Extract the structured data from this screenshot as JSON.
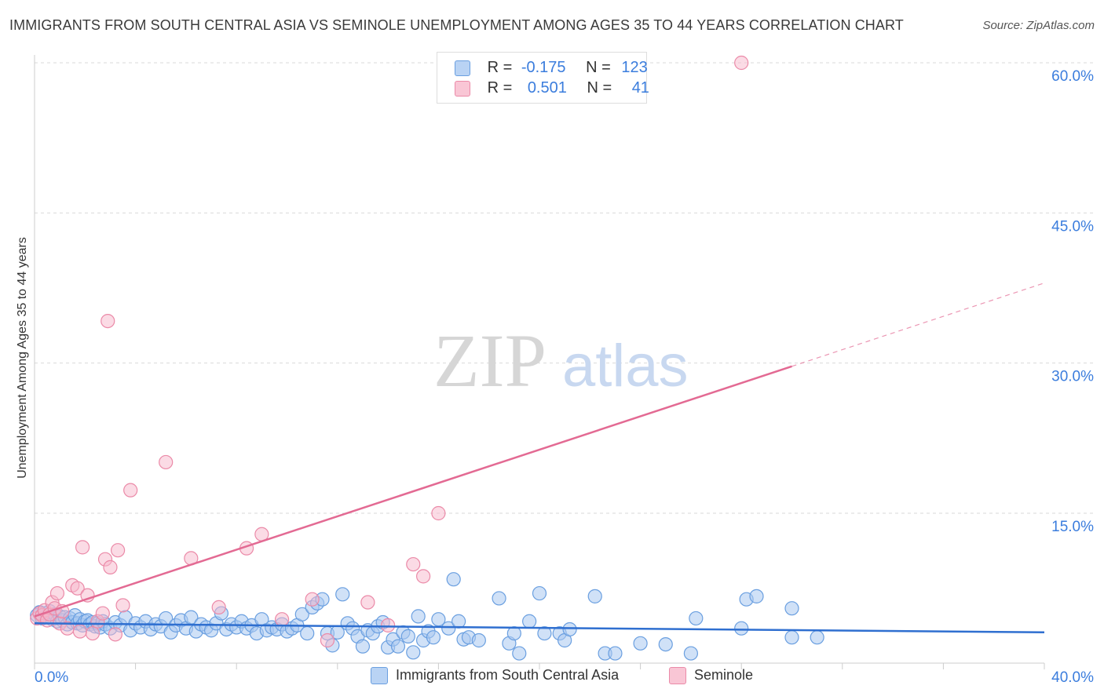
{
  "header": {
    "title": "IMMIGRANTS FROM SOUTH CENTRAL ASIA VS SEMINOLE UNEMPLOYMENT AMONG AGES 35 TO 44 YEARS CORRELATION CHART",
    "source": "Source: ZipAtlas.com"
  },
  "watermark": {
    "zip": "ZIP",
    "atlas": "atlas"
  },
  "legend": {
    "series1": {
      "r_label": "R =",
      "r_value": "-0.175",
      "n_label": "N =",
      "n_value": "123"
    },
    "series2": {
      "r_label": "R =",
      "r_value": "0.501",
      "n_label": "N =",
      "n_value": "41"
    }
  },
  "colors": {
    "blue_fill": "#a9c8f0",
    "blue_stroke": "#6a9fe0",
    "blue_line": "#2f6fd0",
    "pink_fill": "#f7b8cb",
    "pink_stroke": "#eb8aa8",
    "pink_line": "#e36a93",
    "grid": "#d9d9d9",
    "axis_text": "#3b7ddd"
  },
  "chart_data": {
    "type": "scatter",
    "title": "IMMIGRANTS FROM SOUTH CENTRAL ASIA VS SEMINOLE UNEMPLOYMENT AMONG AGES 35 TO 44 YEARS CORRELATION CHART",
    "xlabel": "",
    "ylabel": "Unemployment Among Ages 35 to 44 years",
    "xlim": [
      0,
      40
    ],
    "ylim": [
      0,
      62
    ],
    "x_tick_labels": [
      "0.0%",
      "40.0%"
    ],
    "y_ticks": [
      15,
      30,
      45,
      60
    ],
    "y_tick_labels": [
      "15.0%",
      "30.0%",
      "45.0%",
      "60.0%"
    ],
    "series": [
      {
        "name": "Immigrants from South Central Asia",
        "r": -0.175,
        "n": 123,
        "trend": {
          "x0": 0,
          "y0": 4.0,
          "x1": 40,
          "y1": 3.1
        },
        "points": [
          [
            0.1,
            4.8
          ],
          [
            0.2,
            5.1
          ],
          [
            0.3,
            4.5
          ],
          [
            0.4,
            5.0
          ],
          [
            0.5,
            4.6
          ],
          [
            0.6,
            5.2
          ],
          [
            0.7,
            4.4
          ],
          [
            0.8,
            4.9
          ],
          [
            0.9,
            4.2
          ],
          [
            1.0,
            4.7
          ],
          [
            1.1,
            4.3
          ],
          [
            1.2,
            4.6
          ],
          [
            1.3,
            3.9
          ],
          [
            1.4,
            4.5
          ],
          [
            1.5,
            4.1
          ],
          [
            1.6,
            4.8
          ],
          [
            1.7,
            4.0
          ],
          [
            1.8,
            4.4
          ],
          [
            1.9,
            3.8
          ],
          [
            2.0,
            4.2
          ],
          [
            2.1,
            4.3
          ],
          [
            2.2,
            3.9
          ],
          [
            2.3,
            4.1
          ],
          [
            2.4,
            3.7
          ],
          [
            2.5,
            4.0
          ],
          [
            2.6,
            3.6
          ],
          [
            2.7,
            4.2
          ],
          [
            2.8,
            3.9
          ],
          [
            3.0,
            3.5
          ],
          [
            3.2,
            4.1
          ],
          [
            3.4,
            3.8
          ],
          [
            3.6,
            4.6
          ],
          [
            3.8,
            3.3
          ],
          [
            4.0,
            4.0
          ],
          [
            4.2,
            3.6
          ],
          [
            4.4,
            4.2
          ],
          [
            4.6,
            3.4
          ],
          [
            4.8,
            3.9
          ],
          [
            5.0,
            3.7
          ],
          [
            5.2,
            4.5
          ],
          [
            5.4,
            3.1
          ],
          [
            5.6,
            3.8
          ],
          [
            5.8,
            4.3
          ],
          [
            6.0,
            3.5
          ],
          [
            6.2,
            4.6
          ],
          [
            6.4,
            3.2
          ],
          [
            6.6,
            3.9
          ],
          [
            6.8,
            3.6
          ],
          [
            7.0,
            3.3
          ],
          [
            7.2,
            4.0
          ],
          [
            7.4,
            5.0
          ],
          [
            7.6,
            3.4
          ],
          [
            7.8,
            3.9
          ],
          [
            8.0,
            3.6
          ],
          [
            8.2,
            4.2
          ],
          [
            8.4,
            3.5
          ],
          [
            8.6,
            3.8
          ],
          [
            8.8,
            3.0
          ],
          [
            9.0,
            4.4
          ],
          [
            9.2,
            3.3
          ],
          [
            9.4,
            3.6
          ],
          [
            9.6,
            3.4
          ],
          [
            9.8,
            3.9
          ],
          [
            10.0,
            3.2
          ],
          [
            10.2,
            3.5
          ],
          [
            10.4,
            3.8
          ],
          [
            10.6,
            4.9
          ],
          [
            10.8,
            3.0
          ],
          [
            11.0,
            5.6
          ],
          [
            11.2,
            6.0
          ],
          [
            11.4,
            6.4
          ],
          [
            11.6,
            3.0
          ],
          [
            11.8,
            1.8
          ],
          [
            12.0,
            3.1
          ],
          [
            12.2,
            6.9
          ],
          [
            12.4,
            4.0
          ],
          [
            12.6,
            3.5
          ],
          [
            12.8,
            2.7
          ],
          [
            13.0,
            1.7
          ],
          [
            13.2,
            3.3
          ],
          [
            13.4,
            3.0
          ],
          [
            13.6,
            3.7
          ],
          [
            13.8,
            4.1
          ],
          [
            14.0,
            1.6
          ],
          [
            14.2,
            2.4
          ],
          [
            14.4,
            1.7
          ],
          [
            14.6,
            3.1
          ],
          [
            14.8,
            2.7
          ],
          [
            15.0,
            1.1
          ],
          [
            15.2,
            4.7
          ],
          [
            15.4,
            2.3
          ],
          [
            15.6,
            3.2
          ],
          [
            15.8,
            2.6
          ],
          [
            16.0,
            4.4
          ],
          [
            16.4,
            3.5
          ],
          [
            16.6,
            8.4
          ],
          [
            16.8,
            4.2
          ],
          [
            17.0,
            2.4
          ],
          [
            17.2,
            2.6
          ],
          [
            17.6,
            2.3
          ],
          [
            18.4,
            6.5
          ],
          [
            18.8,
            2.0
          ],
          [
            19.0,
            3.0
          ],
          [
            19.2,
            1.0
          ],
          [
            19.6,
            4.2
          ],
          [
            20.0,
            7.0
          ],
          [
            20.2,
            3.0
          ],
          [
            20.8,
            3.0
          ],
          [
            21.0,
            2.3
          ],
          [
            21.2,
            3.4
          ],
          [
            22.2,
            6.7
          ],
          [
            22.6,
            1.0
          ],
          [
            23.0,
            1.0
          ],
          [
            24.0,
            2.0
          ],
          [
            25.0,
            1.9
          ],
          [
            26.0,
            1.0
          ],
          [
            26.2,
            4.5
          ],
          [
            28.0,
            3.5
          ],
          [
            28.2,
            6.4
          ],
          [
            28.6,
            6.7
          ],
          [
            30.0,
            5.5
          ],
          [
            30.0,
            2.6
          ],
          [
            31.0,
            2.6
          ]
        ]
      },
      {
        "name": "Seminole",
        "r": 0.501,
        "n": 41,
        "trend": {
          "x0": 0,
          "y0": 4.7,
          "x1": 40,
          "y1": 38.0,
          "solid_to_x": 30.0
        },
        "points": [
          [
            0.1,
            4.5
          ],
          [
            0.2,
            5.0
          ],
          [
            0.3,
            4.8
          ],
          [
            0.4,
            5.3
          ],
          [
            0.5,
            4.3
          ],
          [
            0.6,
            4.9
          ],
          [
            0.7,
            6.1
          ],
          [
            0.8,
            5.5
          ],
          [
            0.9,
            7.0
          ],
          [
            1.0,
            4.0
          ],
          [
            1.1,
            5.2
          ],
          [
            1.3,
            3.5
          ],
          [
            1.5,
            7.8
          ],
          [
            1.7,
            7.5
          ],
          [
            1.8,
            3.2
          ],
          [
            1.9,
            11.6
          ],
          [
            2.1,
            6.8
          ],
          [
            2.3,
            3.0
          ],
          [
            2.5,
            4.2
          ],
          [
            2.7,
            5.0
          ],
          [
            2.8,
            10.4
          ],
          [
            2.9,
            34.2
          ],
          [
            3.0,
            9.6
          ],
          [
            3.2,
            2.9
          ],
          [
            3.3,
            11.3
          ],
          [
            3.5,
            5.8
          ],
          [
            3.8,
            17.3
          ],
          [
            5.2,
            20.1
          ],
          [
            6.2,
            10.5
          ],
          [
            7.3,
            5.6
          ],
          [
            8.4,
            11.5
          ],
          [
            9.0,
            12.9
          ],
          [
            9.8,
            4.4
          ],
          [
            11.0,
            6.4
          ],
          [
            11.6,
            2.3
          ],
          [
            13.2,
            6.1
          ],
          [
            14.0,
            3.8
          ],
          [
            15.0,
            9.9
          ],
          [
            15.4,
            8.7
          ],
          [
            16.0,
            15.0
          ],
          [
            28.0,
            60.0
          ]
        ]
      }
    ]
  },
  "bottom_legend": {
    "series1_label": "Immigrants from South Central Asia",
    "series2_label": "Seminole"
  }
}
